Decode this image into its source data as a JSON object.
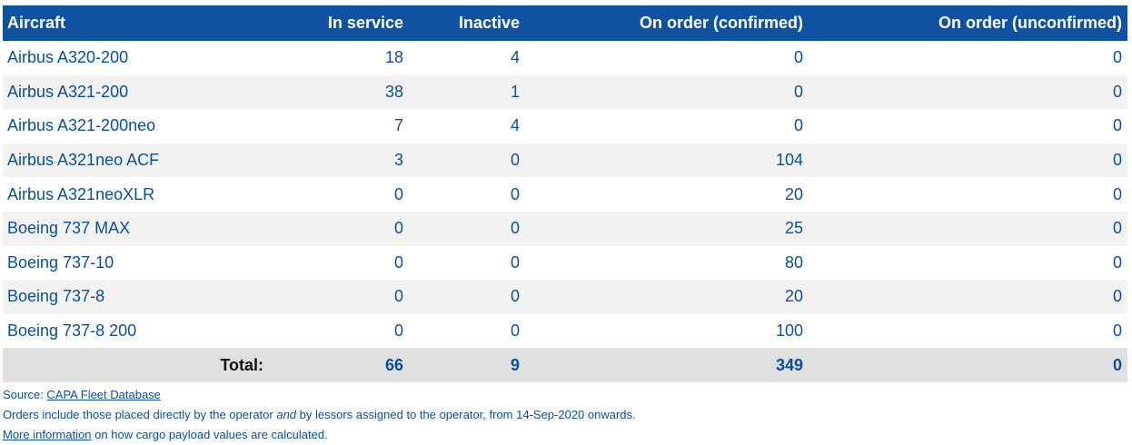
{
  "table": {
    "headers": {
      "aircraft": "Aircraft",
      "in_service": "In service",
      "inactive": "Inactive",
      "on_order_confirmed": "On order (confirmed)",
      "on_order_unconfirmed": "On order (unconfirmed)"
    },
    "rows": [
      {
        "aircraft": "Airbus A320-200",
        "in_service": "18",
        "inactive": "4",
        "confirmed": "0",
        "unconfirmed": "0"
      },
      {
        "aircraft": "Airbus A321-200",
        "in_service": "38",
        "inactive": "1",
        "confirmed": "0",
        "unconfirmed": "0"
      },
      {
        "aircraft": "Airbus A321-200neo",
        "in_service": "7",
        "inactive": "4",
        "confirmed": "0",
        "unconfirmed": "0"
      },
      {
        "aircraft": "Airbus A321neo ACF",
        "in_service": "3",
        "inactive": "0",
        "confirmed": "104",
        "unconfirmed": "0"
      },
      {
        "aircraft": "Airbus A321neoXLR",
        "in_service": "0",
        "inactive": "0",
        "confirmed": "20",
        "unconfirmed": "0"
      },
      {
        "aircraft": "Boeing 737 MAX",
        "in_service": "0",
        "inactive": "0",
        "confirmed": "25",
        "unconfirmed": "0"
      },
      {
        "aircraft": "Boeing 737-10",
        "in_service": "0",
        "inactive": "0",
        "confirmed": "80",
        "unconfirmed": "0"
      },
      {
        "aircraft": "Boeing 737-8",
        "in_service": "0",
        "inactive": "0",
        "confirmed": "20",
        "unconfirmed": "0"
      },
      {
        "aircraft": "Boeing 737-8 200",
        "in_service": "0",
        "inactive": "0",
        "confirmed": "100",
        "unconfirmed": "0"
      }
    ],
    "totals": {
      "label": "Total:",
      "in_service": "66",
      "inactive": "9",
      "confirmed": "349",
      "unconfirmed": "0"
    }
  },
  "notes": {
    "source_prefix": "Source: ",
    "source_link": "CAPA Fleet Database",
    "orders_text_1": "Orders include those placed directly by the operator ",
    "orders_text_em": "and",
    "orders_text_2": " by lessors assigned to the operator, from 14-Sep-2020 onwards.",
    "more_info_link": "More information",
    "more_info_suffix": " on how cargo payload values are calculated."
  },
  "colors": {
    "header_bg": "#0f52a0",
    "text_blue": "#0a4f9c",
    "row_alt_bg": "#f2f2f2",
    "total_bg": "#e0e0e0"
  }
}
